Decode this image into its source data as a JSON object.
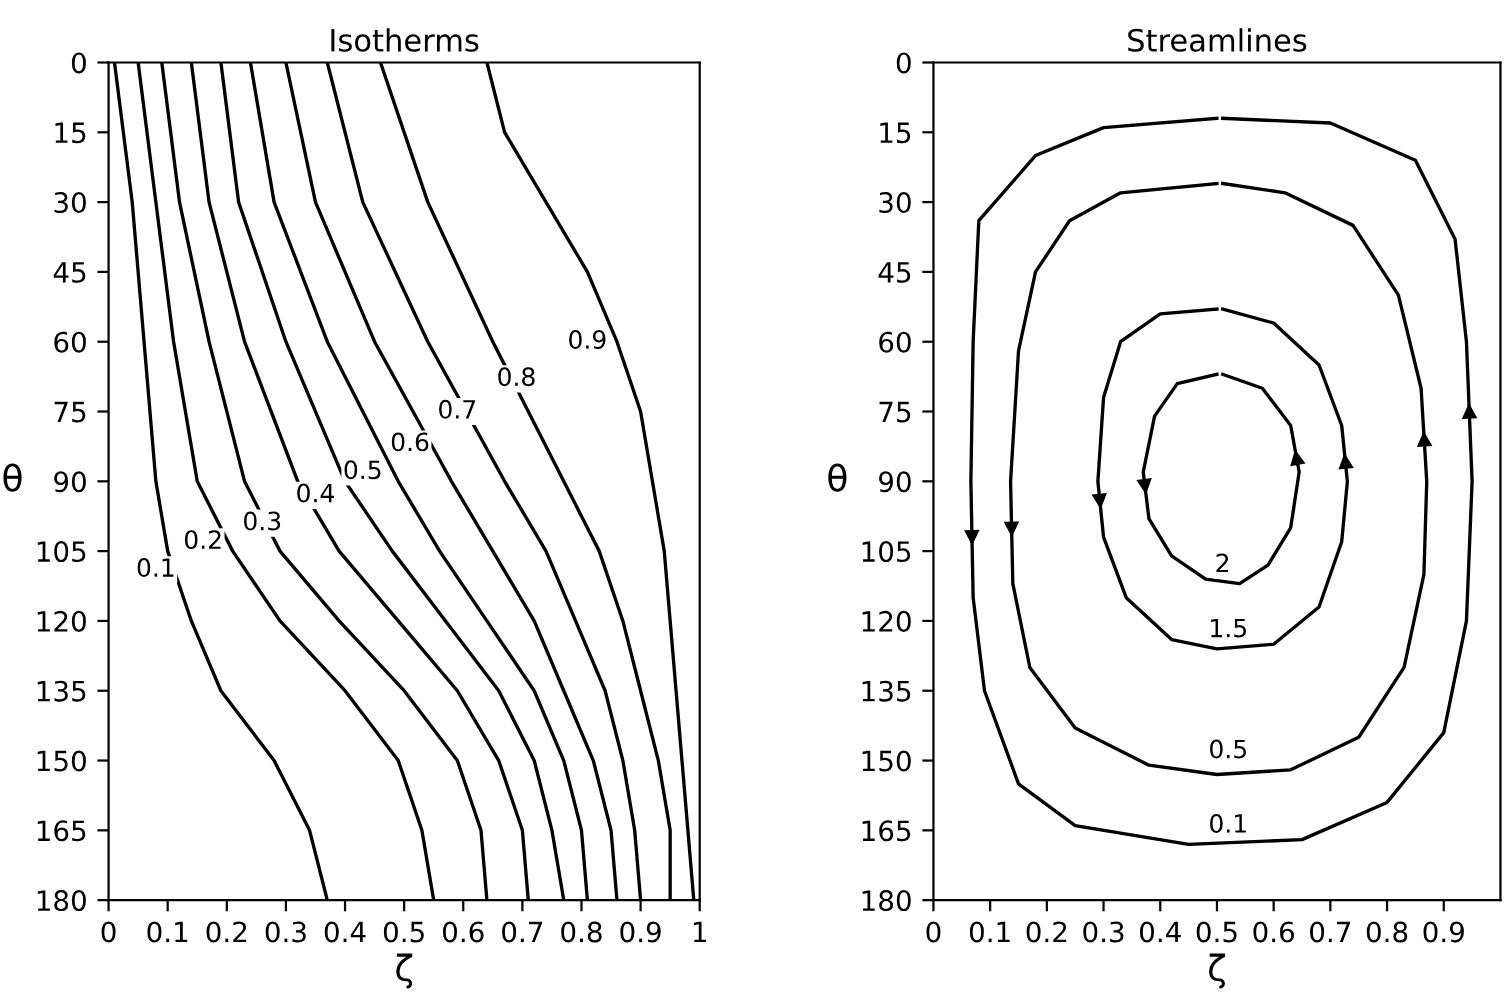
{
  "chart_data": [
    {
      "type": "line",
      "title": "Isotherms",
      "xlabel": "ζ",
      "ylabel": "θ",
      "xlim": [
        0,
        1
      ],
      "ylim": [
        180,
        0
      ],
      "xticks": [
        0,
        0.1,
        0.2,
        0.3,
        0.4,
        0.5,
        0.6,
        0.7,
        0.8,
        0.9,
        1
      ],
      "yticks": [
        0,
        15,
        30,
        45,
        60,
        75,
        90,
        105,
        120,
        135,
        150,
        165,
        180
      ],
      "grid": false,
      "marker": "none",
      "line_style": "solid",
      "series": [
        {
          "color": "#000000",
          "x": [
            0.01,
            0.04,
            0.06,
            0.08,
            0.1,
            0.14,
            0.19,
            0.28,
            0.34,
            0.37
          ],
          "values": [
            0,
            30,
            60,
            90,
            105,
            120,
            135,
            150,
            165,
            180
          ]
        },
        {
          "color": "#000000",
          "x": [
            0.05,
            0.08,
            0.11,
            0.15,
            0.21,
            0.29,
            0.4,
            0.49,
            0.53,
            0.55
          ],
          "values": [
            0,
            30,
            60,
            90,
            105,
            120,
            135,
            150,
            165,
            180
          ]
        },
        {
          "color": "#000000",
          "x": [
            0.09,
            0.12,
            0.17,
            0.23,
            0.29,
            0.39,
            0.5,
            0.59,
            0.63,
            0.64
          ],
          "values": [
            0,
            30,
            60,
            90,
            105,
            120,
            135,
            150,
            165,
            180
          ]
        },
        {
          "color": "#000000",
          "x": [
            0.14,
            0.17,
            0.23,
            0.32,
            0.39,
            0.49,
            0.59,
            0.66,
            0.7,
            0.71
          ],
          "values": [
            0,
            30,
            60,
            90,
            105,
            120,
            135,
            150,
            165,
            180
          ]
        },
        {
          "color": "#000000",
          "x": [
            0.19,
            0.22,
            0.3,
            0.4,
            0.48,
            0.57,
            0.66,
            0.72,
            0.75,
            0.77
          ],
          "values": [
            0,
            30,
            60,
            90,
            105,
            120,
            135,
            150,
            165,
            180
          ]
        },
        {
          "color": "#000000",
          "x": [
            0.24,
            0.28,
            0.37,
            0.49,
            0.56,
            0.64,
            0.72,
            0.77,
            0.8,
            0.81
          ],
          "values": [
            0,
            30,
            60,
            90,
            105,
            120,
            135,
            150,
            165,
            180
          ]
        },
        {
          "color": "#000000",
          "x": [
            0.3,
            0.35,
            0.45,
            0.58,
            0.65,
            0.72,
            0.77,
            0.82,
            0.85,
            0.86
          ],
          "values": [
            0,
            30,
            60,
            90,
            105,
            120,
            135,
            150,
            165,
            180
          ]
        },
        {
          "color": "#000000",
          "x": [
            0.37,
            0.43,
            0.54,
            0.67,
            0.74,
            0.79,
            0.84,
            0.87,
            0.89,
            0.9
          ],
          "values": [
            0,
            30,
            60,
            90,
            105,
            120,
            135,
            150,
            165,
            180
          ]
        },
        {
          "color": "#000000",
          "x": [
            0.46,
            0.54,
            0.65,
            0.77,
            0.83,
            0.87,
            0.9,
            0.93,
            0.95,
            0.95
          ],
          "values": [
            0,
            30,
            60,
            90,
            105,
            120,
            135,
            150,
            165,
            180
          ]
        },
        {
          "color": "#000000",
          "x": [
            0.64,
            0.67,
            0.74,
            0.81,
            0.86,
            0.9,
            0.92,
            0.94,
            0.95,
            0.97,
            0.99
          ],
          "values": [
            0,
            15,
            30,
            45,
            60,
            75,
            90,
            105,
            120,
            150,
            180
          ]
        }
      ],
      "annotations": [
        {
          "text": "0.1",
          "x": 0.08,
          "y": 109
        },
        {
          "text": "0.2",
          "x": 0.16,
          "y": 103
        },
        {
          "text": "0.3",
          "x": 0.26,
          "y": 99
        },
        {
          "text": "0.4",
          "x": 0.35,
          "y": 93
        },
        {
          "text": "0.5",
          "x": 0.43,
          "y": 88
        },
        {
          "text": "0.6",
          "x": 0.51,
          "y": 82
        },
        {
          "text": "0.7",
          "x": 0.59,
          "y": 75
        },
        {
          "text": "0.8",
          "x": 0.69,
          "y": 68
        },
        {
          "text": "0.9",
          "x": 0.81,
          "y": 60
        }
      ]
    },
    {
      "type": "line",
      "title": "Streamlines",
      "xlabel": "ζ",
      "ylabel": "θ",
      "xlim": [
        0,
        1
      ],
      "ylim": [
        180,
        0
      ],
      "xticks": [
        0,
        0.1,
        0.2,
        0.3,
        0.4,
        0.5,
        0.6,
        0.7,
        0.8,
        0.9
      ],
      "yticks": [
        0,
        15,
        30,
        45,
        60,
        75,
        90,
        105,
        120,
        135,
        150,
        165,
        180
      ],
      "grid": false,
      "marker": "none",
      "line_style": "solid",
      "series": [
        {
          "color": "#000000",
          "x": [
            0.5,
            0.3,
            0.18,
            0.08,
            0.07,
            0.066,
            0.07,
            0.09,
            0.15,
            0.25,
            0.45,
            0.65,
            0.8,
            0.9,
            0.94,
            0.95,
            0.94,
            0.92,
            0.85,
            0.7,
            0.51
          ],
          "values": [
            12,
            14,
            20,
            34,
            60,
            90,
            115,
            135,
            155,
            164,
            168,
            167,
            159,
            144,
            120,
            90,
            60,
            38,
            21,
            13,
            12
          ]
        },
        {
          "color": "#000000",
          "x": [
            0.5,
            0.33,
            0.24,
            0.18,
            0.15,
            0.136,
            0.14,
            0.17,
            0.25,
            0.38,
            0.5,
            0.63,
            0.75,
            0.83,
            0.865,
            0.87,
            0.86,
            0.82,
            0.74,
            0.62,
            0.51
          ],
          "values": [
            26,
            28,
            34,
            45,
            62,
            90,
            112,
            130,
            143,
            151,
            153,
            152,
            145,
            130,
            110,
            90,
            70,
            50,
            35,
            28,
            26
          ]
        },
        {
          "color": "#000000",
          "x": [
            0.5,
            0.4,
            0.33,
            0.3,
            0.29,
            0.3,
            0.34,
            0.42,
            0.5,
            0.6,
            0.68,
            0.72,
            0.73,
            0.72,
            0.68,
            0.6,
            0.51
          ],
          "values": [
            53,
            54,
            60,
            72,
            90,
            102,
            115,
            124,
            126,
            125,
            117,
            103,
            90,
            78,
            65,
            56,
            53
          ]
        },
        {
          "color": "#000000",
          "x": [
            0.5,
            0.43,
            0.39,
            0.37,
            0.38,
            0.42,
            0.48,
            0.54,
            0.59,
            0.63,
            0.645,
            0.63,
            0.58,
            0.51
          ],
          "values": [
            67,
            69,
            76,
            88,
            98,
            106,
            111,
            112,
            108,
            100,
            88,
            78,
            70,
            67
          ]
        }
      ],
      "annotations": [
        {
          "text": "2",
          "x": 0.51,
          "y": 108
        },
        {
          "text": "1.5",
          "x": 0.52,
          "y": 122
        },
        {
          "text": "0.5",
          "x": 0.52,
          "y": 148
        },
        {
          "text": "0.1",
          "x": 0.52,
          "y": 164
        }
      ]
    }
  ]
}
